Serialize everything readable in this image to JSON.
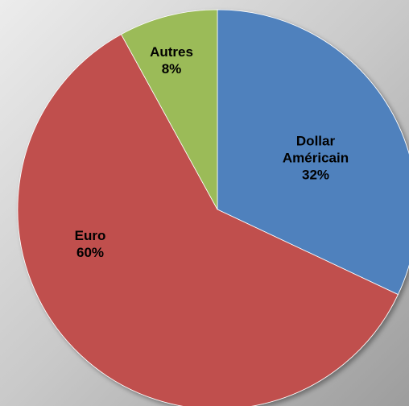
{
  "chart_data": {
    "type": "pie",
    "categories": [
      "Dollar Américain",
      "Euro",
      "Autres"
    ],
    "values": [
      32,
      60,
      8
    ],
    "value_labels": [
      "32%",
      "60%",
      "8%"
    ],
    "colors": [
      "#4f81bd",
      "#c0504d",
      "#9bbb59"
    ]
  }
}
